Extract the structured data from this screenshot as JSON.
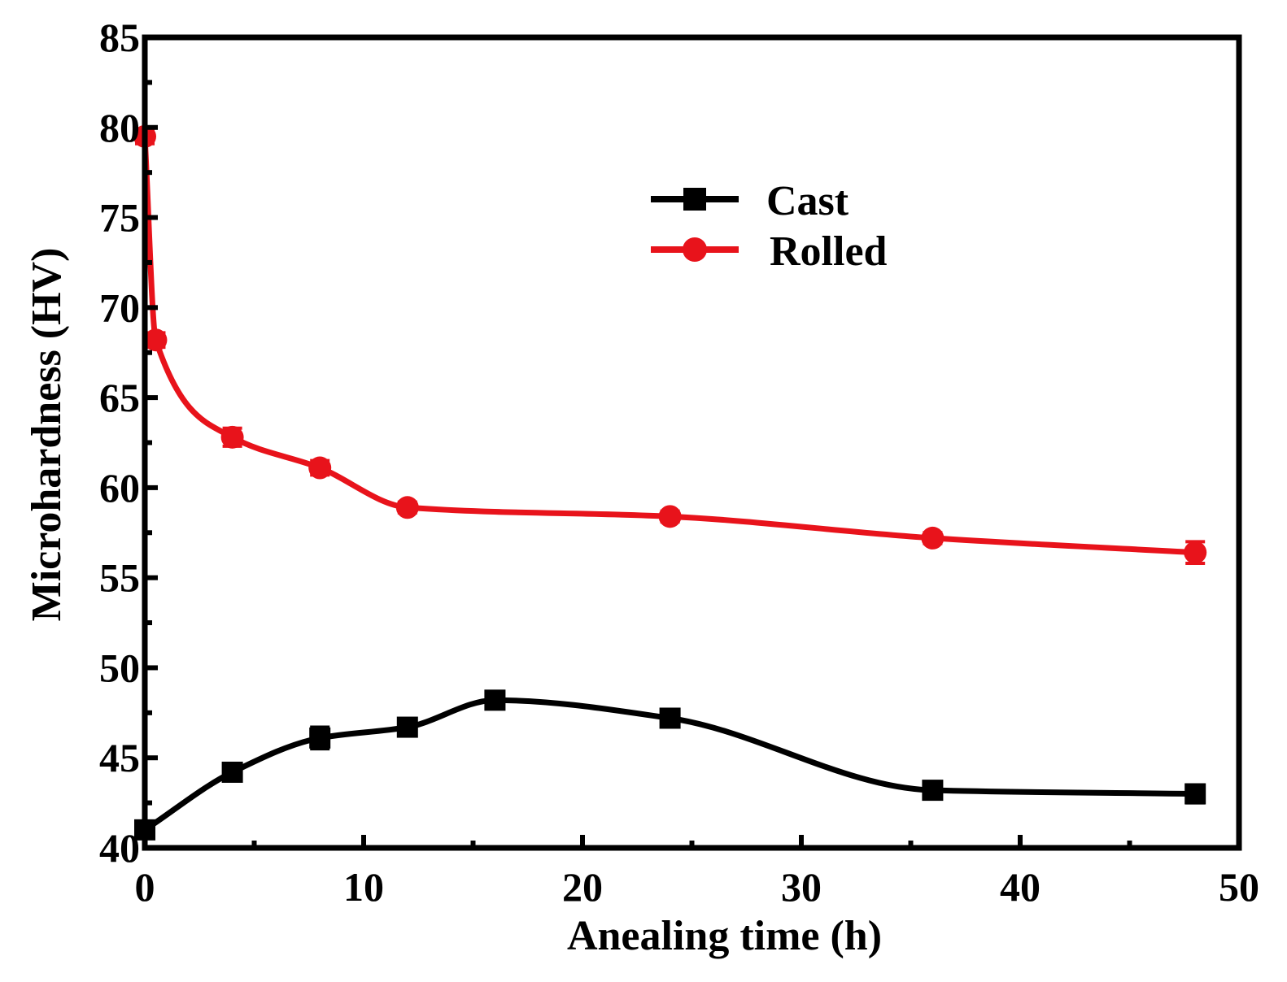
{
  "chart_data": {
    "type": "line",
    "title": "",
    "xlabel": "Anealing time (h)",
    "ylabel": "Microhardness (HV)",
    "xlim": [
      0,
      50
    ],
    "ylim": [
      40,
      85
    ],
    "xticks": [
      0,
      10,
      20,
      30,
      40,
      50
    ],
    "yticks": [
      40,
      45,
      50,
      55,
      60,
      65,
      70,
      75,
      80,
      85
    ],
    "grid": false,
    "legend_position": "upper-center-right",
    "series": [
      {
        "name": "Cast",
        "color": "#000000",
        "marker": "square",
        "x": [
          0,
          4,
          8,
          12,
          16,
          24,
          36,
          48
        ],
        "y": [
          41.0,
          44.2,
          46.1,
          46.7,
          48.2,
          47.2,
          43.2,
          43.0
        ],
        "error": [
          0.3,
          0.3,
          0.6,
          0.3,
          0.4,
          0.3,
          0.3,
          0.5
        ]
      },
      {
        "name": "Rolled",
        "color": "#e8131b",
        "marker": "circle",
        "x": [
          0,
          0.5,
          4,
          8,
          12,
          24,
          36,
          48
        ],
        "y": [
          79.5,
          68.2,
          62.8,
          61.1,
          58.9,
          58.4,
          57.2,
          56.4
        ],
        "error": [
          0.4,
          0.4,
          0.5,
          0.4,
          0.3,
          0.3,
          0.3,
          0.6
        ]
      }
    ]
  }
}
